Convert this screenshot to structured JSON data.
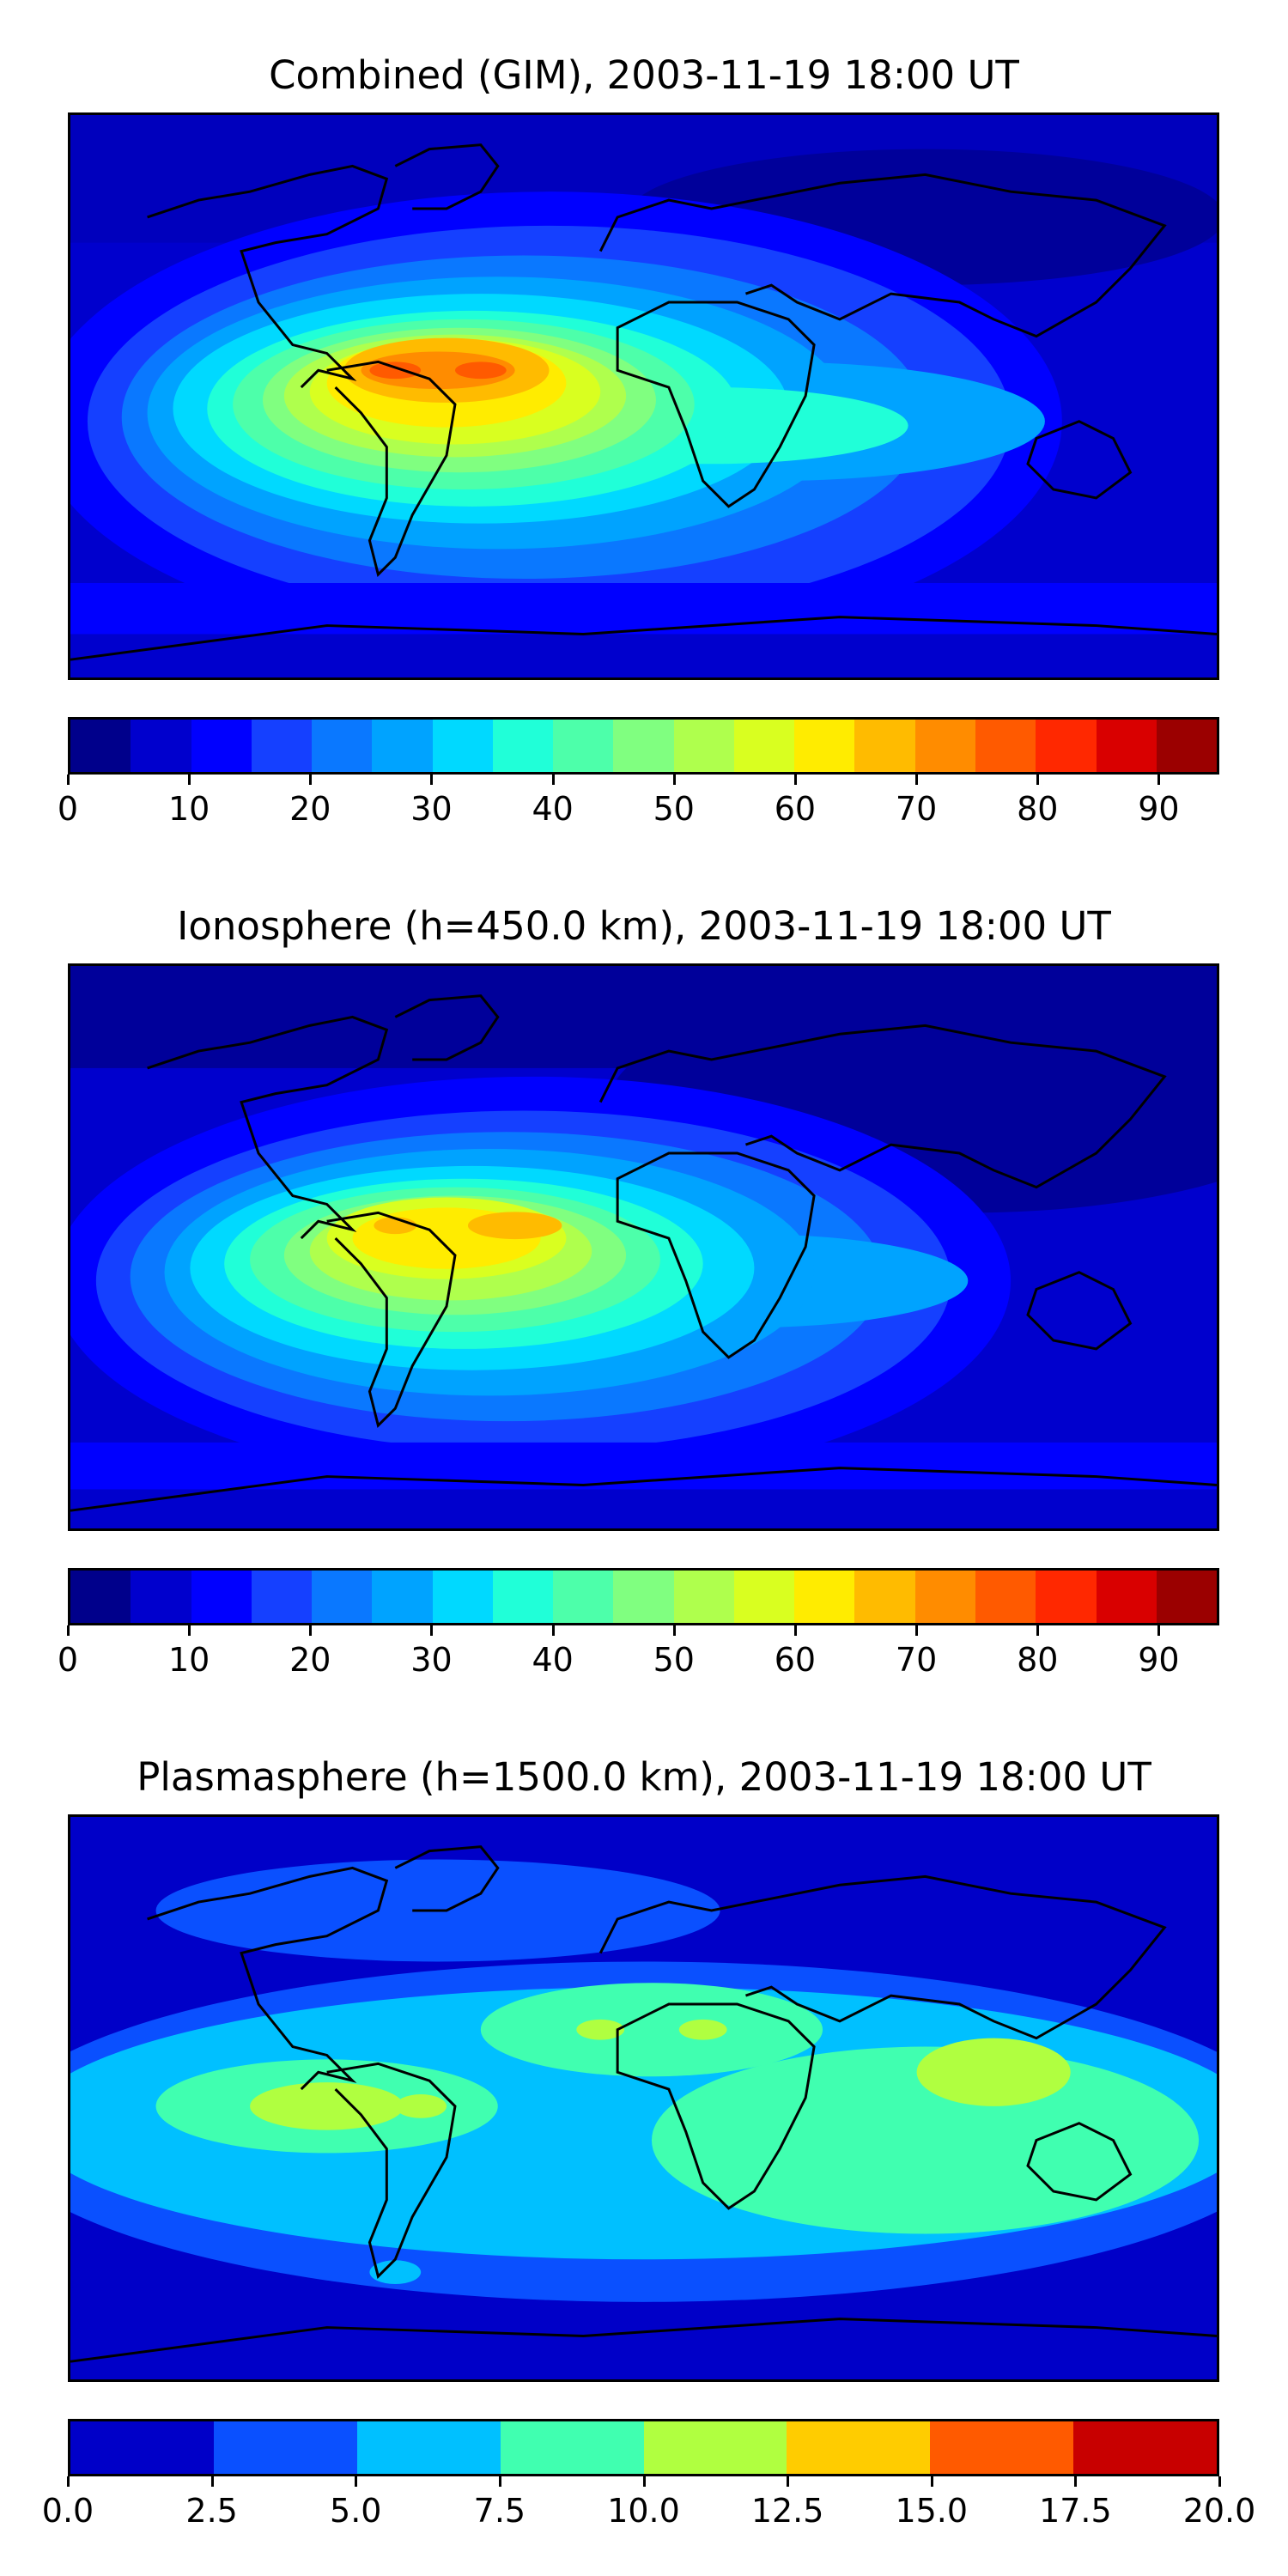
{
  "panels": [
    {
      "title": "Combined (GIM), 2003-11-19 18:00 UT",
      "levels": [
        0,
        5,
        10,
        15,
        20,
        25,
        30,
        35,
        40,
        45,
        50,
        55,
        60,
        65,
        70,
        75,
        80,
        85,
        90,
        95
      ],
      "tick_values": [
        0,
        10,
        20,
        30,
        40,
        50,
        60,
        70,
        80,
        90
      ],
      "tick_labels": [
        "0",
        "10",
        "20",
        "30",
        "40",
        "50",
        "60",
        "70",
        "80",
        "90"
      ],
      "colors": [
        "#00008b",
        "#0000cd",
        "#0000ff",
        "#1540ff",
        "#0a78ff",
        "#00a3ff",
        "#00d9ff",
        "#20ffd8",
        "#4dffaa",
        "#80ff80",
        "#afff4d",
        "#d9ff20",
        "#ffec00",
        "#ffbb00",
        "#ff8c00",
        "#ff5a00",
        "#ff2800",
        "#d90000",
        "#9b0000"
      ]
    },
    {
      "title": "Ionosphere  (h=450.0 km), 2003-11-19 18:00 UT",
      "levels": [
        0,
        5,
        10,
        15,
        20,
        25,
        30,
        35,
        40,
        45,
        50,
        55,
        60,
        65,
        70,
        75,
        80,
        85,
        90,
        95
      ],
      "tick_values": [
        0,
        10,
        20,
        30,
        40,
        50,
        60,
        70,
        80,
        90
      ],
      "tick_labels": [
        "0",
        "10",
        "20",
        "30",
        "40",
        "50",
        "60",
        "70",
        "80",
        "90"
      ],
      "colors": [
        "#00008b",
        "#0000cd",
        "#0000ff",
        "#1540ff",
        "#0a78ff",
        "#00a3ff",
        "#00d9ff",
        "#20ffd8",
        "#4dffaa",
        "#80ff80",
        "#afff4d",
        "#d9ff20",
        "#ffec00",
        "#ffbb00",
        "#ff8c00",
        "#ff5a00",
        "#ff2800",
        "#d90000",
        "#9b0000"
      ]
    },
    {
      "title": "Plasmasphere (h=1500.0 km), 2003-11-19 18:00 UT",
      "levels": [
        0,
        2.5,
        5,
        7.5,
        10,
        12.5,
        15,
        17.5,
        20
      ],
      "tick_values": [
        0,
        2.5,
        5,
        7.5,
        10,
        12.5,
        15,
        17.5,
        20
      ],
      "tick_labels": [
        "0.0",
        "2.5",
        "5.0",
        "7.5",
        "10.0",
        "12.5",
        "15.0",
        "17.5",
        "20.0"
      ],
      "colors": [
        "#0000c8",
        "#0a50ff",
        "#00c0ff",
        "#40ffb0",
        "#b0ff40",
        "#ffcc00",
        "#ff5a00",
        "#c80000"
      ]
    }
  ]
}
